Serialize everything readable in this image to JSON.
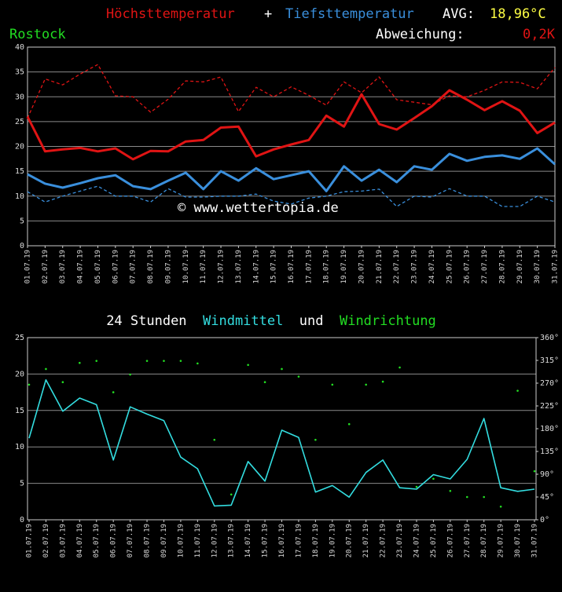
{
  "header": {
    "plus": "+",
    "avg_label": "AVG:",
    "avg_value": "18,96°C",
    "station": "Rostock",
    "deviation_label": "Abweichung:",
    "deviation_value": "0,2K"
  },
  "chart_data": [
    {
      "type": "line",
      "annotation": "© www.wettertopia.de",
      "categories": [
        "01.07.19",
        "02.07.19",
        "03.07.19",
        "04.07.19",
        "05.07.19",
        "06.07.19",
        "07.07.19",
        "08.07.19",
        "09.07.19",
        "10.07.19",
        "11.07.19",
        "12.07.19",
        "13.07.19",
        "14.07.19",
        "15.07.19",
        "16.07.19",
        "17.07.19",
        "18.07.19",
        "19.07.19",
        "20.07.19",
        "21.07.19",
        "22.07.19",
        "23.07.19",
        "24.07.19",
        "25.07.19",
        "26.07.19",
        "27.07.19",
        "28.07.19",
        "29.07.19",
        "30.07.19",
        "31.07.19"
      ],
      "ylim": [
        0,
        40
      ],
      "yticks": [
        0,
        5,
        10,
        15,
        20,
        25,
        30,
        35,
        40
      ],
      "grid": true,
      "series": [
        {
          "name": "Höchsttemperatur",
          "color": "#e01414",
          "width": 3,
          "values": [
            26,
            19,
            19.4,
            19.7,
            19,
            19.6,
            17.4,
            19.1,
            19,
            21,
            21.3,
            23.8,
            24,
            18,
            19.4,
            20.4,
            21.3,
            26.2,
            24,
            30.5,
            24.5,
            23.4,
            25.7,
            28.1,
            31.3,
            29.4,
            27.3,
            29.1,
            27.2,
            22.7,
            24.8
          ]
        },
        {
          "color": "#e01414",
          "width": 1.3,
          "dash": true,
          "values": [
            25.7,
            33.6,
            32.4,
            34.6,
            36.5,
            30.2,
            30,
            26.9,
            29.5,
            33.2,
            33,
            34,
            27,
            31.9,
            30,
            32,
            30.3,
            28.3,
            33,
            30.8,
            34,
            29.4,
            28.9,
            28.4,
            30.2,
            30,
            31.3,
            33,
            32.9,
            31.6,
            35.9
          ]
        },
        {
          "name": "Tiefsttemperatur",
          "color": "#3a8fdc",
          "width": 3,
          "values": [
            14.4,
            12.5,
            11.7,
            12.6,
            13.6,
            14.2,
            12,
            11.4,
            13.1,
            14.7,
            11.4,
            15,
            13.1,
            15.6,
            13.4,
            14.2,
            15,
            11,
            16,
            13.1,
            15.3,
            12.8,
            16,
            15.3,
            18.5,
            17.1,
            17.9,
            18.2,
            17.5,
            19.6,
            16.4
          ]
        },
        {
          "color": "#3a8fdc",
          "width": 1.3,
          "dash": true,
          "values": [
            10.9,
            8.8,
            10,
            11,
            12,
            10,
            10,
            8.8,
            11.5,
            9.8,
            9.8,
            10,
            10,
            10.4,
            9,
            8.4,
            9.6,
            10,
            10.9,
            11,
            11.4,
            7.9,
            10,
            9.8,
            11.5,
            10,
            10,
            7.9,
            7.9,
            10,
            8.8
          ]
        }
      ]
    },
    {
      "type": "line",
      "title": [
        "24 Stunden",
        "und"
      ],
      "categories": [
        "01.07.19",
        "02.07.19",
        "03.07.19",
        "04.07.19",
        "05.07.19",
        "06.07.19",
        "07.07.19",
        "08.07.19",
        "09.07.19",
        "10.07.19",
        "11.07.19",
        "12.07.19",
        "13.07.19",
        "14.07.19",
        "15.07.19",
        "16.07.19",
        "17.07.19",
        "18.07.19",
        "19.07.19",
        "20.07.19",
        "21.07.19",
        "22.07.19",
        "23.07.19",
        "24.07.19",
        "25.07.19",
        "26.07.19",
        "27.07.19",
        "28.07.19",
        "29.07.19",
        "30.07.19",
        "31.07.19"
      ],
      "ylim": [
        0,
        25
      ],
      "yticks": [
        0,
        5,
        10,
        15,
        20,
        25
      ],
      "grid": true,
      "y2lim": [
        0,
        360
      ],
      "y2ticks": [
        {
          "value": 0,
          "label": "0°"
        },
        {
          "value": 45,
          "label": "45°"
        },
        {
          "value": 90,
          "label": "90°"
        },
        {
          "value": 135,
          "label": "135°"
        },
        {
          "value": 180,
          "label": "180°"
        },
        {
          "value": 225,
          "label": "225°"
        },
        {
          "value": 270,
          "label": "270°"
        },
        {
          "value": 315,
          "label": "315°"
        },
        {
          "value": 360,
          "label": "360°"
        }
      ],
      "series": [
        {
          "name": "Windmittel",
          "color": "#33dde0",
          "width": 1.6,
          "values": [
            11.2,
            19.2,
            14.9,
            16.7,
            15.8,
            8.2,
            15.5,
            14.5,
            13.6,
            8.6,
            7,
            1.9,
            2,
            8,
            5.3,
            12.3,
            11.3,
            3.8,
            4.7,
            3.1,
            6.5,
            8.2,
            4.4,
            4.2,
            6.2,
            5.6,
            8.3,
            13.9,
            4.4,
            3.9,
            4.2
          ]
        },
        {
          "name": "Windrichtung",
          "color": "#22dd22",
          "axis": "y2",
          "mode": "points",
          "values": [
            267,
            298,
            272,
            310,
            314,
            252,
            287,
            314,
            314,
            314,
            309,
            158,
            50,
            306,
            272,
            298,
            283,
            158,
            267,
            189,
            267,
            273,
            301,
            65,
            81,
            57,
            45,
            45,
            26,
            255,
            96
          ]
        }
      ]
    }
  ]
}
